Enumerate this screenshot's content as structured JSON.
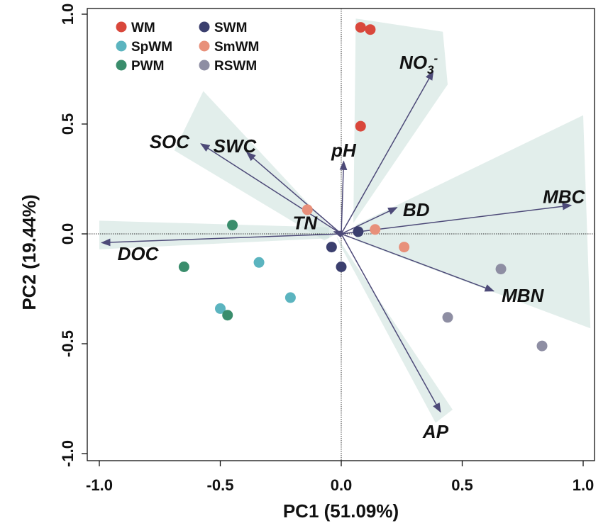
{
  "chart_data": {
    "type": "scatter",
    "subtype": "pca-biplot",
    "xlabel": "PC1 (51.09%)",
    "ylabel": "PC2 (19.44%)",
    "xlim": [
      -1.02,
      1.02
    ],
    "ylim": [
      -1.02,
      1.0
    ],
    "xticks": [
      -1.0,
      -0.5,
      0.0,
      0.5,
      1.0
    ],
    "yticks": [
      1.0,
      0.5,
      0.0,
      -0.5,
      -1.0
    ],
    "xtick_labels": [
      "-1.0",
      "-0.5",
      "0.0",
      "0.5",
      "1.0"
    ],
    "ytick_labels": [
      "1.0",
      "0.5",
      "0.0",
      "-0.5",
      "-1.0"
    ],
    "legend": {
      "position": "top-left",
      "items": [
        {
          "name": "WM",
          "color": "#d9473b"
        },
        {
          "name": "SWM",
          "color": "#3b3f6e"
        },
        {
          "name": "SpWM",
          "color": "#5bb4bf"
        },
        {
          "name": "SmWM",
          "color": "#e8907a"
        },
        {
          "name": "PWM",
          "color": "#3a8d6c"
        },
        {
          "name": "RSWM",
          "color": "#8e8ea3"
        }
      ]
    },
    "series": [
      {
        "name": "WM",
        "color": "#d9473b",
        "points": [
          [
            0.08,
            0.94
          ],
          [
            0.12,
            0.93
          ],
          [
            0.08,
            0.49
          ]
        ]
      },
      {
        "name": "SWM",
        "color": "#3b3f6e",
        "points": [
          [
            0.07,
            0.01
          ],
          [
            -0.04,
            -0.06
          ],
          [
            0.0,
            -0.15
          ]
        ]
      },
      {
        "name": "SpWM",
        "color": "#5bb4bf",
        "points": [
          [
            -0.34,
            -0.13
          ],
          [
            -0.21,
            -0.29
          ],
          [
            -0.5,
            -0.34
          ]
        ]
      },
      {
        "name": "SmWM",
        "color": "#e8907a",
        "points": [
          [
            -0.14,
            0.11
          ],
          [
            0.14,
            0.02
          ],
          [
            0.26,
            -0.06
          ]
        ]
      },
      {
        "name": "PWM",
        "color": "#3a8d6c",
        "points": [
          [
            -0.45,
            0.04
          ],
          [
            -0.65,
            -0.15
          ],
          [
            -0.47,
            -0.37
          ]
        ]
      },
      {
        "name": "RSWM",
        "color": "#8e8ea3",
        "points": [
          [
            0.66,
            -0.16
          ],
          [
            0.44,
            -0.38
          ],
          [
            0.83,
            -0.51
          ]
        ]
      }
    ],
    "vectors": [
      {
        "name": "NO3",
        "label": "NO",
        "sub": "3",
        "sup": "-",
        "x": 0.38,
        "y": 0.74,
        "label_at": [
          0.32,
          0.78
        ]
      },
      {
        "name": "SOC",
        "label": "SOC",
        "x": -0.58,
        "y": 0.41,
        "label_at": [
          -0.71,
          0.42
        ]
      },
      {
        "name": "SWC",
        "label": "SWC",
        "x": -0.39,
        "y": 0.37,
        "label_at": [
          -0.44,
          0.4
        ]
      },
      {
        "name": "pH",
        "label": "pH",
        "x": 0.01,
        "y": 0.33,
        "label_at": [
          0.01,
          0.38
        ]
      },
      {
        "name": "BD",
        "label": "BD",
        "x": 0.23,
        "y": 0.12,
        "label_at": [
          0.31,
          0.11
        ]
      },
      {
        "name": "MBC",
        "label": "MBC",
        "x": 0.95,
        "y": 0.13,
        "label_at": [
          0.92,
          0.17
        ]
      },
      {
        "name": "TN",
        "label": "TN",
        "x": -0.03,
        "y": 0.01,
        "label_at": [
          -0.15,
          0.05
        ]
      },
      {
        "name": "DOC",
        "label": "DOC",
        "x": -0.99,
        "y": -0.04,
        "label_at": [
          -0.84,
          -0.09
        ]
      },
      {
        "name": "MBN",
        "label": "MBN",
        "x": 0.63,
        "y": -0.26,
        "label_at": [
          0.75,
          -0.28
        ]
      },
      {
        "name": "AP",
        "label": "AP",
        "x": 0.41,
        "y": -0.81,
        "label_at": [
          0.39,
          -0.9
        ]
      }
    ],
    "shaded_regions": [
      [
        [
          0.06,
          0.98
        ],
        [
          0.42,
          0.92
        ],
        [
          0.44,
          0.68
        ],
        [
          0.05,
          0.05
        ]
      ],
      [
        [
          0.06,
          0.04
        ],
        [
          1.0,
          0.54
        ],
        [
          1.03,
          -0.43
        ],
        [
          0.06,
          -0.03
        ]
      ],
      [
        [
          -0.69,
          0.38
        ],
        [
          -0.57,
          0.65
        ],
        [
          -0.02,
          0.0
        ],
        [
          -0.07,
          -0.03
        ]
      ],
      [
        [
          -1.0,
          0.06
        ],
        [
          -0.05,
          0.03
        ],
        [
          -0.05,
          -0.02
        ],
        [
          -1.0,
          -0.07
        ]
      ],
      [
        [
          -0.02,
          -0.01
        ],
        [
          0.46,
          -0.8
        ],
        [
          0.39,
          -0.86
        ],
        [
          -0.01,
          -0.04
        ]
      ]
    ]
  }
}
